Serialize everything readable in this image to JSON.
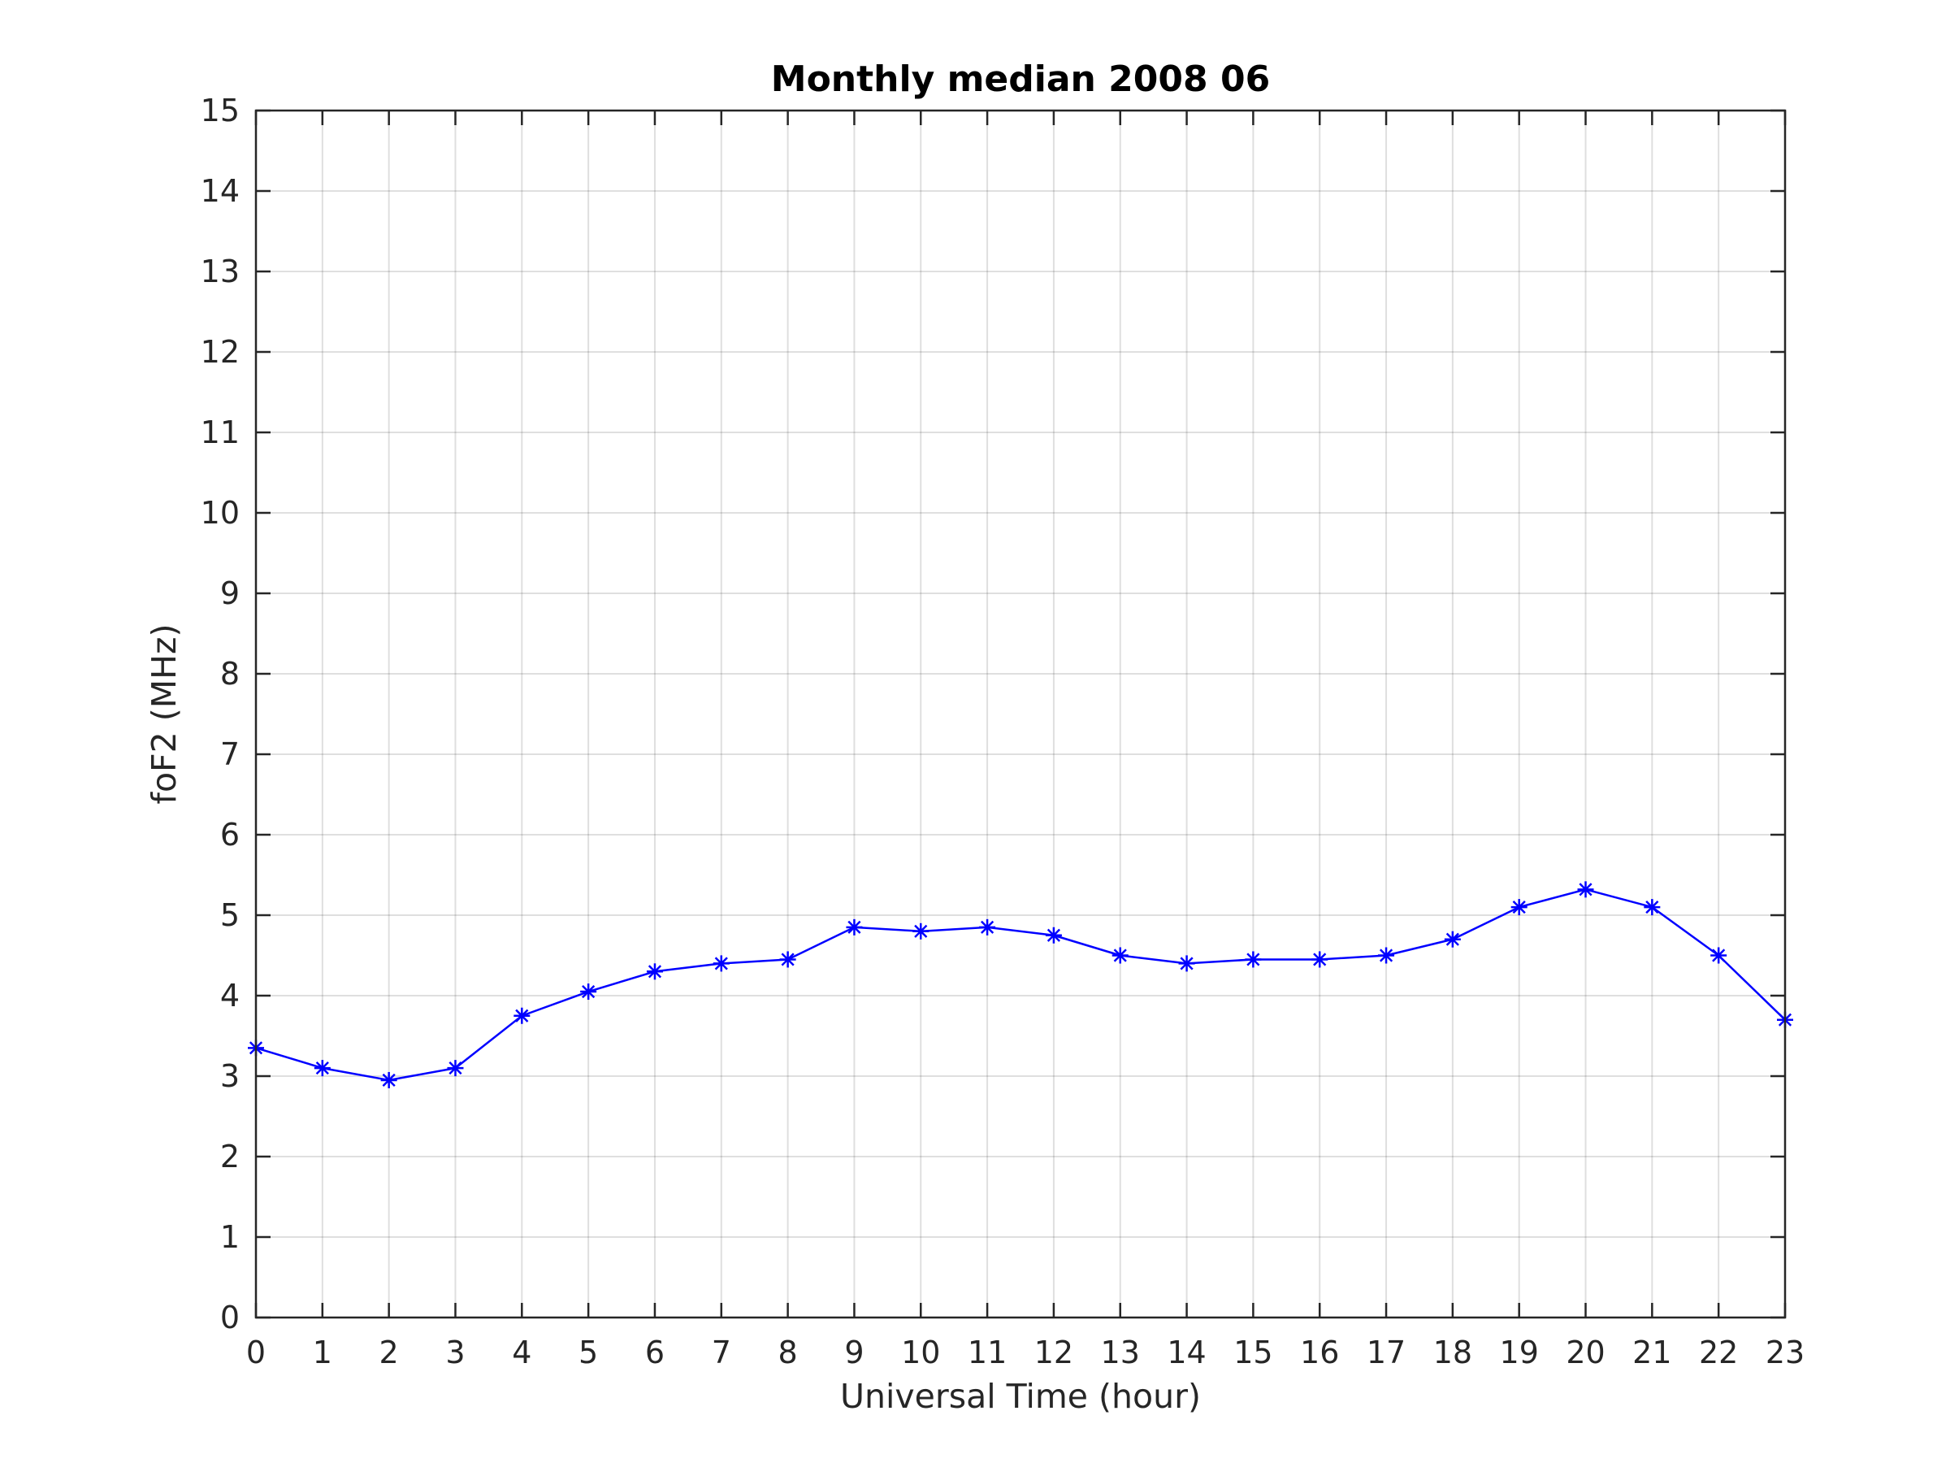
{
  "chart_data": {
    "type": "line",
    "title": "Monthly median 2008 06",
    "xlabel": "Universal Time (hour)",
    "ylabel": "foF2 (MHz)",
    "xlim": [
      0,
      23
    ],
    "ylim": [
      0,
      15
    ],
    "xticks": [
      0,
      1,
      2,
      3,
      4,
      5,
      6,
      7,
      8,
      9,
      10,
      11,
      12,
      13,
      14,
      15,
      16,
      17,
      18,
      19,
      20,
      21,
      22,
      23
    ],
    "yticks": [
      0,
      1,
      2,
      3,
      4,
      5,
      6,
      7,
      8,
      9,
      10,
      11,
      12,
      13,
      14,
      15
    ],
    "grid": true,
    "marker": "asterisk",
    "series_color": "#0000ff",
    "series": [
      {
        "x": [
          0,
          1,
          2,
          3,
          4,
          5,
          6,
          7,
          8,
          9,
          10,
          11,
          12,
          13,
          14,
          15,
          16,
          17,
          18,
          19,
          20,
          21,
          22,
          23
        ],
        "values": [
          3.35,
          3.1,
          2.95,
          3.1,
          3.75,
          4.05,
          4.3,
          4.4,
          4.45,
          4.85,
          4.8,
          4.85,
          4.75,
          4.5,
          4.4,
          4.45,
          4.45,
          4.5,
          4.7,
          5.1,
          5.32,
          5.1,
          4.5,
          3.7
        ]
      }
    ]
  }
}
